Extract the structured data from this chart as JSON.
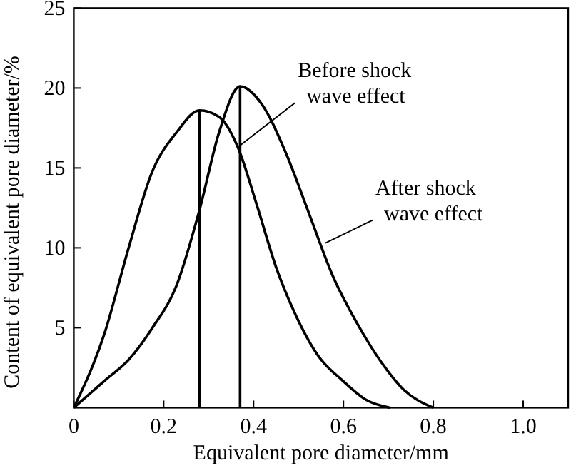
{
  "chart_data": {
    "type": "line",
    "xlabel": "Equivalent pore diameter/mm",
    "ylabel": "Content of equivalent pore diameter/%",
    "xlim": [
      0,
      1.1
    ],
    "ylim": [
      0,
      25
    ],
    "xticks": [
      0,
      {
        "value": 0.2,
        "label": "0.2"
      },
      {
        "value": 0.4,
        "label": "0.4"
      },
      {
        "value": 0.6,
        "label": "0.6"
      },
      {
        "value": 0.8,
        "label": "0.8"
      },
      {
        "value": 1,
        "label": "1.0"
      }
    ],
    "yticks": [
      5,
      10,
      15,
      20,
      25
    ],
    "grid": false,
    "marker": "none",
    "line_style": "solid",
    "series": [
      {
        "color": "#000000",
        "x": [
          0,
          0.069,
          0.122,
          0.175,
          0.228,
          0.28,
          0.323,
          0.365,
          0.407,
          0.45,
          0.492,
          0.545,
          0.598,
          0.65,
          0.704
        ],
        "values": [
          0,
          4.7,
          10,
          14.8,
          17.2,
          18.6,
          18.2,
          16.3,
          12.7,
          8.8,
          5.9,
          3.2,
          1.7,
          0.5,
          0
        ]
      },
      {
        "color": "#000000",
        "x": [
          0,
          0.069,
          0.122,
          0.175,
          0.228,
          0.28,
          0.323,
          0.37,
          0.418,
          0.471,
          0.524,
          0.577,
          0.63,
          0.683,
          0.735,
          0.8
        ],
        "values": [
          0,
          1.7,
          3,
          5,
          7.6,
          12.4,
          17.2,
          20.1,
          19,
          16,
          12.1,
          8.2,
          5.3,
          2.9,
          1.1,
          0
        ]
      },
      {
        "color": "#000000",
        "x": [
          0.28,
          0.28
        ],
        "values": [
          0,
          18.6
        ]
      },
      {
        "color": "#000000",
        "x": [
          0.37,
          0.37
        ],
        "values": [
          0,
          20.1
        ]
      }
    ],
    "annotations": [
      {
        "text": "Before shock\nwave effect",
        "x": 0.365,
        "y": 16.3
      },
      {
        "text": "After shock\nwave effect",
        "x": 0.56,
        "y": 10.3
      }
    ]
  }
}
